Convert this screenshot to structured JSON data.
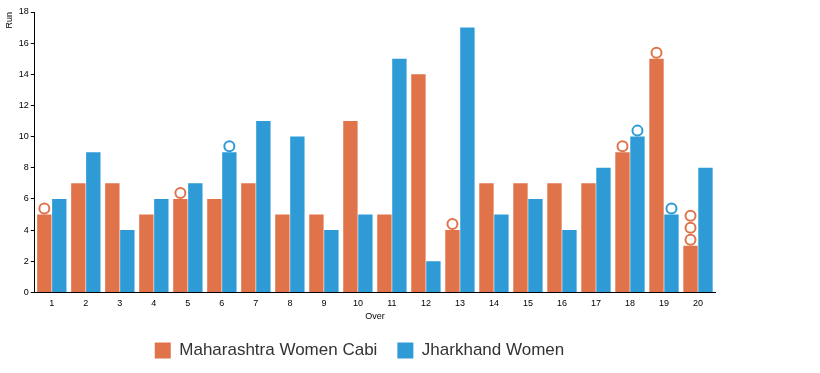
{
  "chart_data": {
    "type": "bar",
    "x_label": "Over",
    "y_label": "Run",
    "categories": [
      1,
      2,
      3,
      4,
      5,
      6,
      7,
      8,
      9,
      10,
      11,
      12,
      13,
      14,
      15,
      16,
      17,
      18,
      19,
      20
    ],
    "series": [
      {
        "name": "Maharashtra Women Cabi",
        "color": "#e0734a",
        "values": [
          5,
          7,
          7,
          5,
          6,
          6,
          7,
          5,
          5,
          11,
          5,
          14,
          4,
          7,
          7,
          7,
          7,
          9,
          15,
          3
        ],
        "wickets": [
          1,
          0,
          0,
          0,
          1,
          0,
          0,
          0,
          0,
          0,
          0,
          0,
          1,
          0,
          0,
          0,
          0,
          1,
          1,
          3
        ]
      },
      {
        "name": "Jharkhand Women",
        "color": "#2e9bd6",
        "values": [
          6,
          9,
          4,
          6,
          7,
          9,
          11,
          10,
          4,
          5,
          15,
          2,
          17,
          5,
          6,
          4,
          8,
          10,
          5,
          8
        ],
        "wickets": [
          0,
          0,
          0,
          0,
          0,
          1,
          0,
          0,
          0,
          0,
          0,
          0,
          0,
          0,
          0,
          0,
          0,
          1,
          1,
          0
        ]
      }
    ],
    "ylim": [
      0,
      18
    ],
    "yticks": [
      0,
      2,
      4,
      6,
      8,
      10,
      12,
      14,
      16,
      18
    ],
    "grid": false,
    "legend": "bottom"
  }
}
